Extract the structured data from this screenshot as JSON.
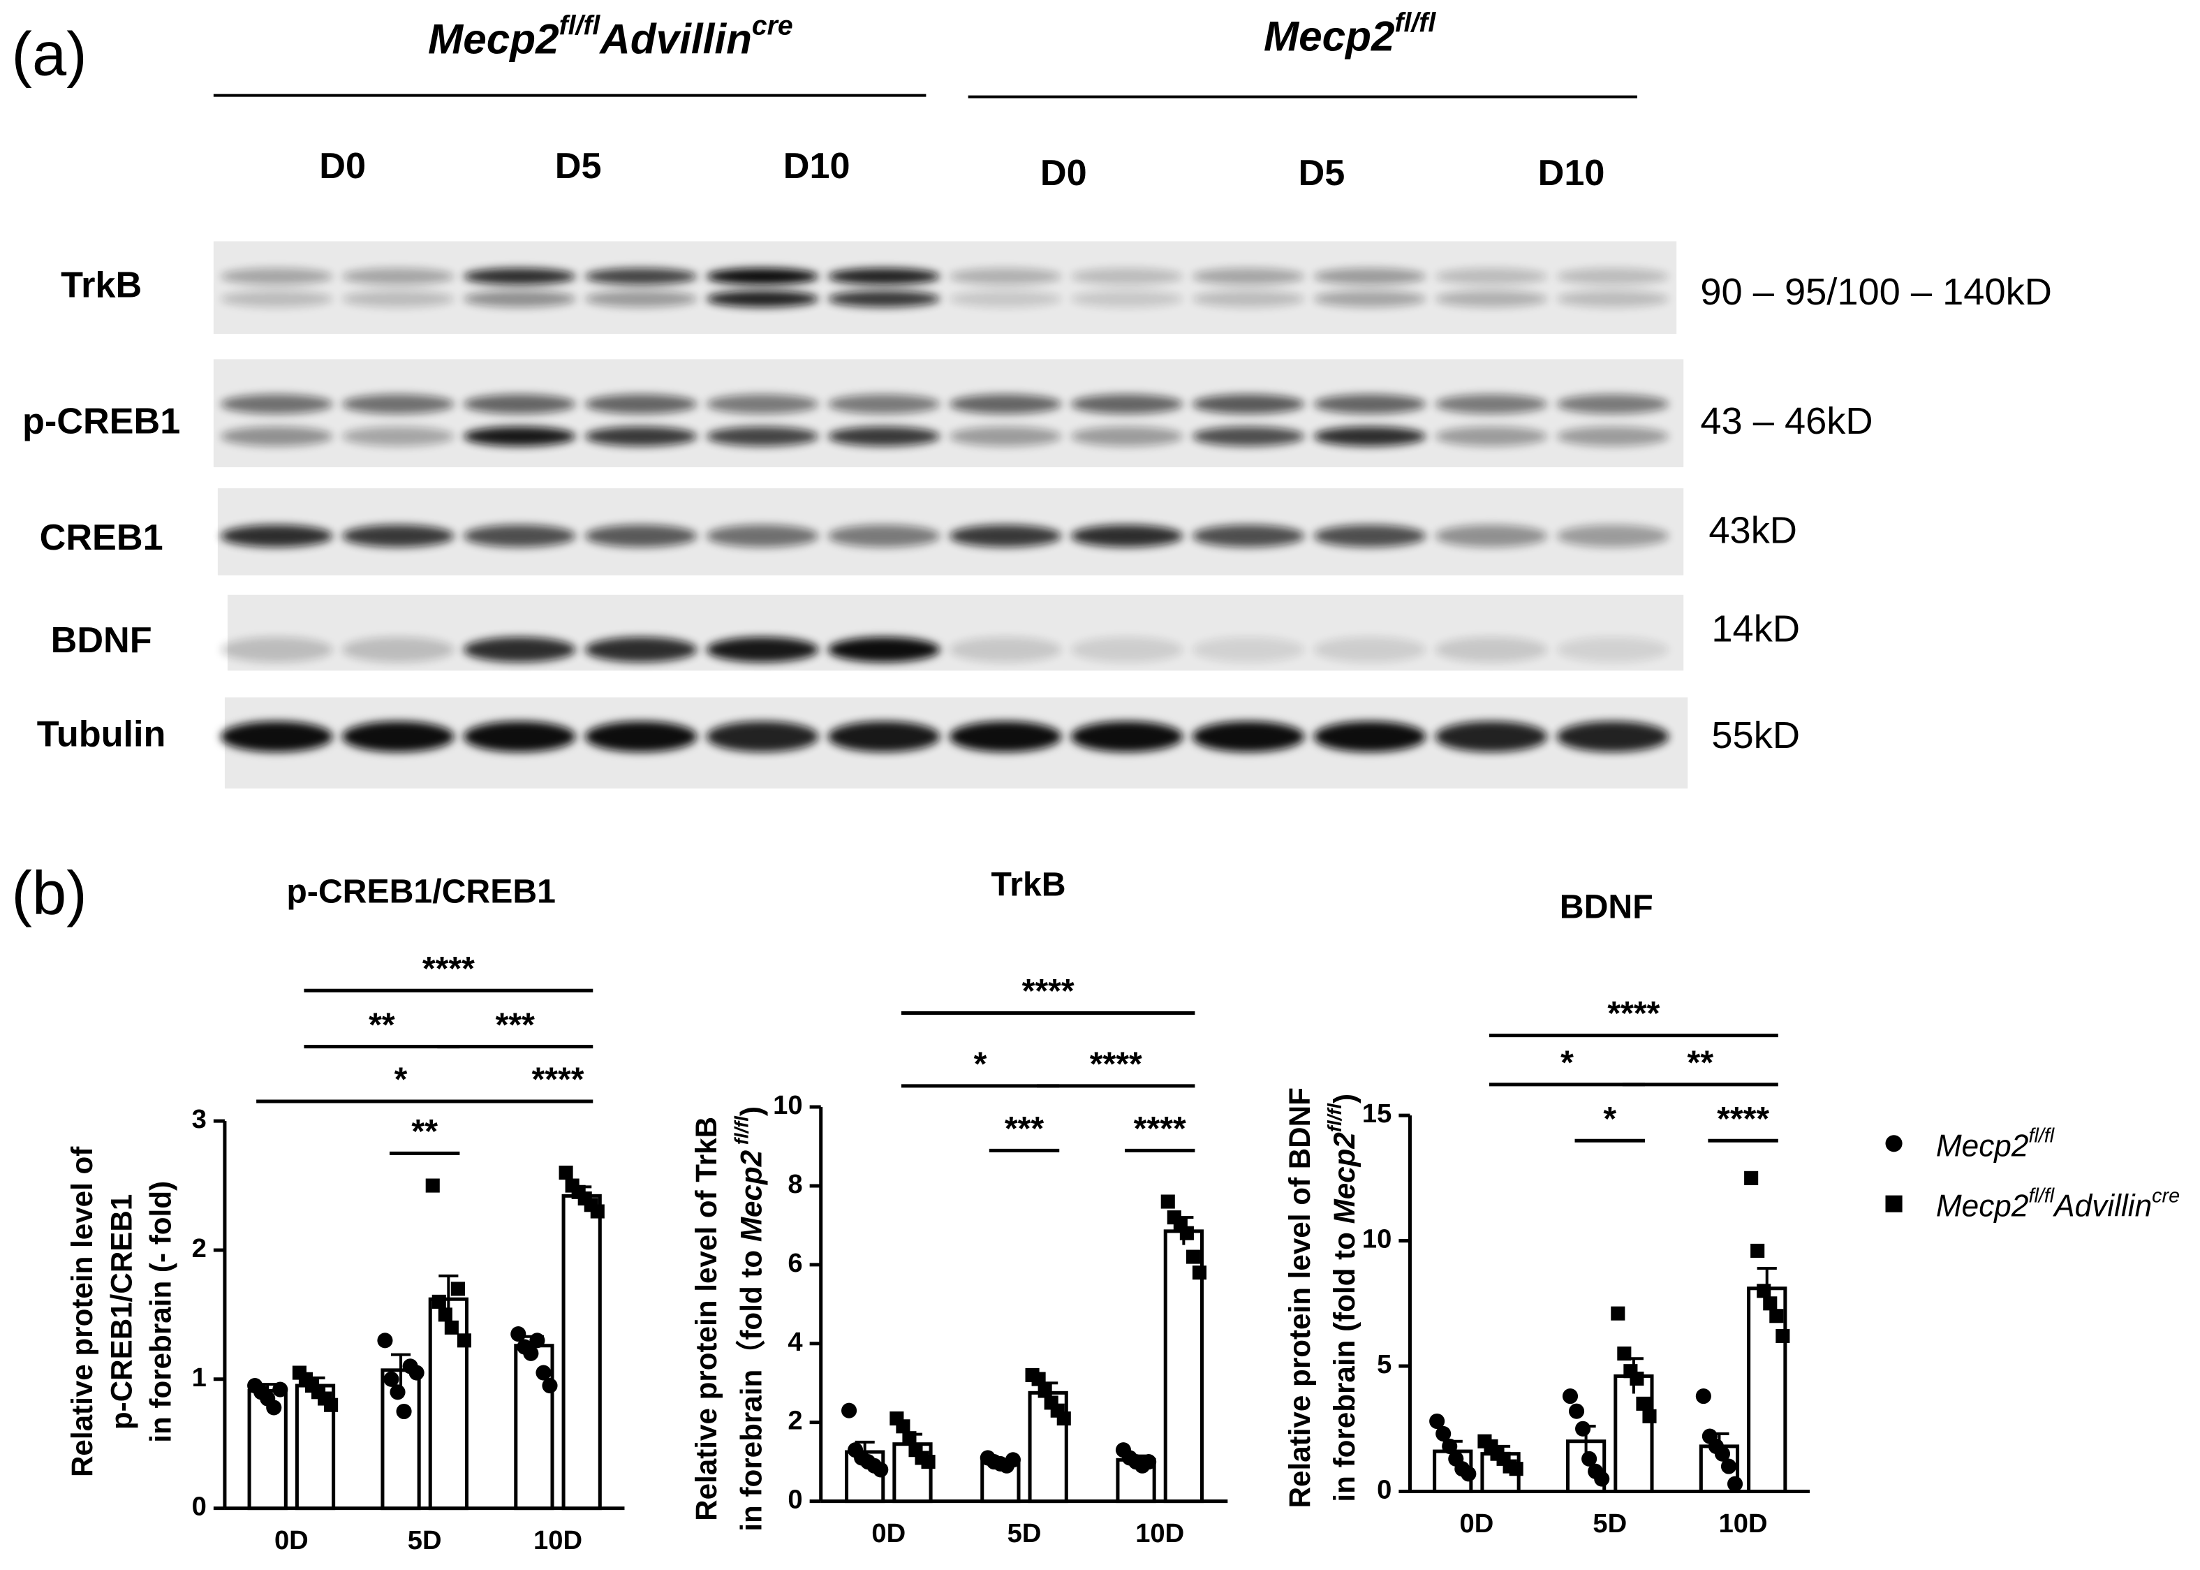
{
  "panel_a": {
    "label": "(a)",
    "groups": [
      {
        "name": [
          {
            "text": "Mecp2"
          },
          {
            "text": "fl/fl",
            "sup": true
          },
          {
            "text": "Advillin"
          },
          {
            "text": "cre",
            "sup": true
          }
        ],
        "lanes": [
          "D0",
          "D5",
          "D10"
        ]
      },
      {
        "name": [
          {
            "text": "Mecp2"
          },
          {
            "text": "fl/fl",
            "sup": true
          }
        ],
        "lanes": [
          "D0",
          "D5",
          "D10"
        ]
      }
    ],
    "rows": [
      {
        "protein": "TrkB",
        "size": "90 – 95/100 – 140kD"
      },
      {
        "protein": "p-CREB1",
        "size": "43 – 46kD"
      },
      {
        "protein": "CREB1",
        "size": "43kD"
      },
      {
        "protein": "BDNF",
        "size": "14kD"
      },
      {
        "protein": "Tubulin",
        "size": "55kD"
      }
    ]
  },
  "panel_b": {
    "label": "(b)"
  },
  "chart_data": [
    {
      "type": "bar",
      "title": "p-CREB1/CREB1",
      "ylabel": [
        [
          {
            "text": "Relative protein level of"
          }
        ],
        [
          {
            "text": "p-CREB1/CREB1"
          }
        ],
        [
          {
            "text": "in forebrain (- fold)"
          }
        ]
      ],
      "categories": [
        "0D",
        "5D",
        "10D"
      ],
      "ylim": [
        0,
        3
      ],
      "yticks": [
        0,
        1,
        2,
        3
      ],
      "series": [
        {
          "name": [
            {
              "text": "Mecp2"
            },
            {
              "text": "fl/fl",
              "sup": true
            }
          ],
          "marker": "circle",
          "color": "#000000",
          "values": [
            0.91,
            1.07,
            1.26
          ],
          "errors": [
            0.05,
            0.12,
            0.07
          ],
          "points": [
            [
              0.95,
              0.9,
              0.85,
              0.78,
              0.92
            ],
            [
              1.3,
              1.0,
              0.9,
              0.75,
              1.1,
              1.05
            ],
            [
              1.35,
              1.25,
              1.2,
              1.3,
              1.05,
              0.95
            ]
          ]
        },
        {
          "name": [
            {
              "text": "Mecp2"
            },
            {
              "text": "fl/fl",
              "sup": true
            },
            {
              "text": "Advillin"
            },
            {
              "text": "cre",
              "sup": true
            }
          ],
          "marker": "square",
          "color": "#000000",
          "values": [
            0.95,
            1.62,
            2.42
          ],
          "errors": [
            0.06,
            0.18,
            0.07
          ],
          "points": [
            [
              1.05,
              1.0,
              0.95,
              0.9,
              0.85,
              0.8
            ],
            [
              2.5,
              1.6,
              1.5,
              1.4,
              1.7,
              1.3
            ],
            [
              2.6,
              2.5,
              2.45,
              2.4,
              2.35,
              2.3
            ]
          ]
        }
      ],
      "brackets": [
        {
          "label": "****"
        },
        {
          "label": "**"
        },
        {
          "label": "***"
        },
        {
          "label": "*"
        },
        {
          "label": "****"
        },
        {
          "label": "**"
        }
      ]
    },
    {
      "type": "bar",
      "title": "TrkB",
      "ylabel": [
        [
          {
            "text": "Relative protein level of TrkB"
          }
        ],
        [
          {
            "text": "in forebrain（fold to "
          },
          {
            "text": "Mecp2",
            "italic": true
          },
          {
            "text": " fl/fl",
            "sup": true,
            "italic": true
          },
          {
            "text": ")"
          }
        ]
      ],
      "categories": [
        "0D",
        "5D",
        "10D"
      ],
      "ylim": [
        0,
        10
      ],
      "yticks": [
        0,
        2,
        4,
        6,
        8,
        10
      ],
      "series": [
        {
          "name": [
            {
              "text": "Mecp2"
            },
            {
              "text": "fl/fl",
              "sup": true
            }
          ],
          "marker": "circle",
          "color": "#000000",
          "values": [
            1.25,
            1.0,
            1.05
          ],
          "errors": [
            0.25,
            0.05,
            0.1
          ],
          "points": [
            [
              2.3,
              1.3,
              1.1,
              1.0,
              0.9,
              0.8
            ],
            [
              1.1,
              1.0,
              0.95,
              0.9,
              1.05
            ],
            [
              1.3,
              1.1,
              1.0,
              0.9,
              1.0
            ]
          ]
        },
        {
          "name": [
            {
              "text": "Mecp2"
            },
            {
              "text": "fl/fl",
              "sup": true
            },
            {
              "text": "Advillin"
            },
            {
              "text": "cre",
              "sup": true
            }
          ],
          "marker": "square",
          "color": "#000000",
          "values": [
            1.45,
            2.75,
            6.85
          ],
          "errors": [
            0.25,
            0.25,
            0.35
          ],
          "points": [
            [
              2.1,
              1.9,
              1.6,
              1.3,
              1.1,
              1.0
            ],
            [
              3.2,
              3.1,
              2.8,
              2.5,
              2.3,
              2.1
            ],
            [
              7.6,
              7.2,
              7.0,
              6.8,
              6.2,
              5.8
            ]
          ]
        }
      ],
      "brackets": [
        {
          "label": "****"
        },
        {
          "label": "*"
        },
        {
          "label": "****"
        },
        {
          "label": "***"
        },
        {
          "label": "****"
        }
      ]
    },
    {
      "type": "bar",
      "title": "BDNF",
      "ylabel": [
        [
          {
            "text": "Relative protein level of BDNF"
          }
        ],
        [
          {
            "text": "in forebrain (fold to "
          },
          {
            "text": "Mecp2",
            "italic": true
          },
          {
            "text": "fl/fl",
            "sup": true,
            "italic": true
          },
          {
            "text": ")"
          }
        ]
      ],
      "categories": [
        "0D",
        "5D",
        "10D"
      ],
      "ylim": [
        0,
        15
      ],
      "yticks": [
        0,
        5,
        10,
        15
      ],
      "series": [
        {
          "name": [
            {
              "text": "Mecp2"
            },
            {
              "text": "fl/fl",
              "sup": true
            }
          ],
          "marker": "circle",
          "color": "#000000",
          "values": [
            1.6,
            2.0,
            1.8
          ],
          "errors": [
            0.4,
            0.6,
            0.5
          ],
          "points": [
            [
              2.8,
              2.3,
              1.8,
              1.3,
              0.9,
              0.7
            ],
            [
              3.8,
              3.2,
              2.5,
              1.3,
              0.8,
              0.5
            ],
            [
              3.8,
              2.2,
              1.8,
              1.5,
              1.0,
              0.3
            ]
          ]
        },
        {
          "name": [
            {
              "text": "Mecp2"
            },
            {
              "text": "fl/fl",
              "sup": true
            },
            {
              "text": "Advillin"
            },
            {
              "text": "cre",
              "sup": true
            }
          ],
          "marker": "square",
          "color": "#000000",
          "values": [
            1.5,
            4.6,
            8.1
          ],
          "errors": [
            0.3,
            0.7,
            0.8
          ],
          "points": [
            [
              2.0,
              1.8,
              1.5,
              1.3,
              1.0,
              0.9
            ],
            [
              7.1,
              5.5,
              4.8,
              4.5,
              3.5,
              3.0
            ],
            [
              12.5,
              9.6,
              8.0,
              7.5,
              7.0,
              6.2
            ]
          ]
        }
      ],
      "brackets": [
        {
          "label": "****"
        },
        {
          "label": "*"
        },
        {
          "label": "**"
        },
        {
          "label": "*"
        },
        {
          "label": "****"
        }
      ]
    }
  ]
}
